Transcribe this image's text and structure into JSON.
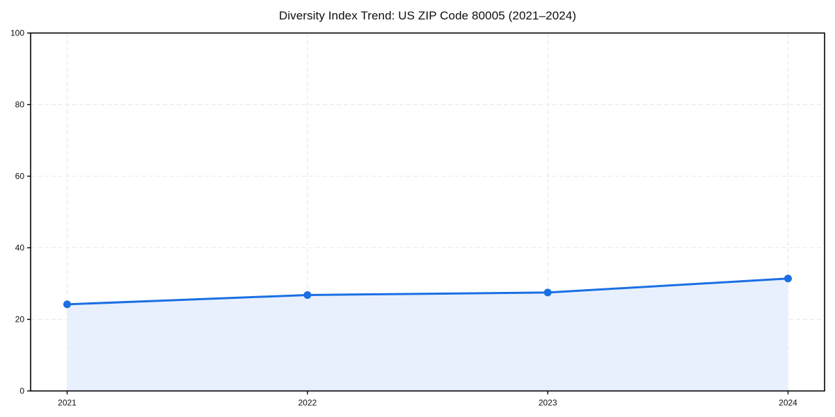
{
  "chart_data": {
    "type": "area",
    "title": "Diversity Index Trend: US ZIP Code 80005 (2021–2024)",
    "categories": [
      "2021",
      "2022",
      "2023",
      "2024"
    ],
    "values": [
      24.2,
      26.8,
      27.5,
      31.4
    ],
    "series_name": "Diversity Index",
    "xlabel": "",
    "ylabel": "",
    "ylim": [
      0,
      100
    ],
    "yticks": [
      0,
      20,
      40,
      60,
      80,
      100
    ],
    "grid": "dashed, light gray, horizontal and vertical",
    "legend": "none",
    "colors": {
      "line": "#1a6fe3",
      "marker": "#1a6fe3",
      "area_fill": "#e8f0fd",
      "grid": "#e7e7e7",
      "spine": "#000000",
      "text": "#0d0d0d",
      "background": "#ffffff"
    }
  }
}
